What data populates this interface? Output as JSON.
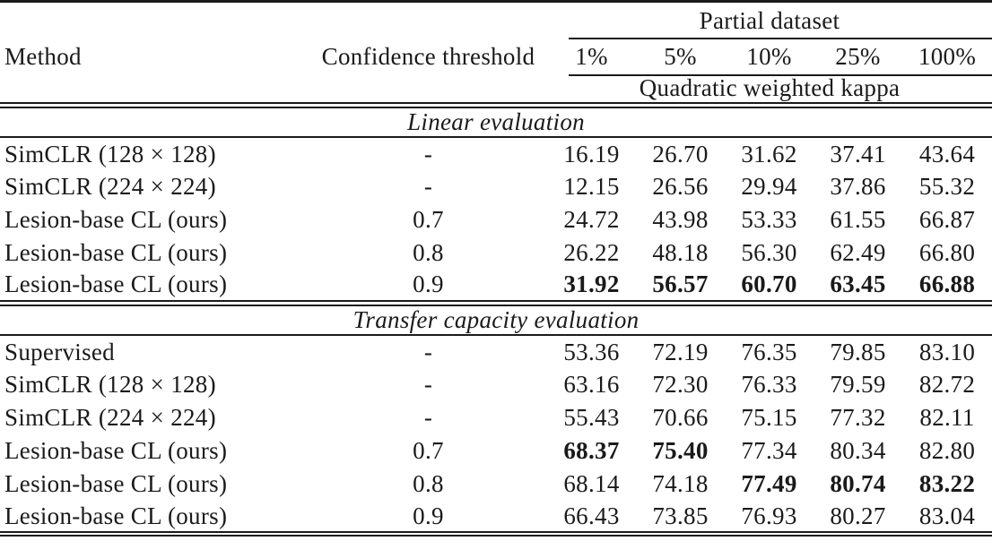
{
  "colors": {
    "text": "#1a1a1a",
    "background": "#ffffff"
  },
  "table": {
    "columns": {
      "method": "Method",
      "confidence": "Confidence threshold",
      "group": "Partial dataset",
      "percents": [
        "1%",
        "5%",
        "10%",
        "25%",
        "100%"
      ],
      "metric": "Quadratic weighted kappa"
    },
    "sections": [
      {
        "title": "Linear evaluation",
        "rows": [
          {
            "method": "SimCLR (128 × 128)",
            "confidence": "-",
            "values": [
              "16.19",
              "26.70",
              "31.62",
              "37.41",
              "43.64"
            ],
            "bold": [
              false,
              false,
              false,
              false,
              false
            ]
          },
          {
            "method": "SimCLR (224 × 224)",
            "confidence": "-",
            "values": [
              "12.15",
              "26.56",
              "29.94",
              "37.86",
              "55.32"
            ],
            "bold": [
              false,
              false,
              false,
              false,
              false
            ]
          },
          {
            "method": "Lesion-base CL (ours)",
            "confidence": "0.7",
            "values": [
              "24.72",
              "43.98",
              "53.33",
              "61.55",
              "66.87"
            ],
            "bold": [
              false,
              false,
              false,
              false,
              false
            ]
          },
          {
            "method": "Lesion-base CL (ours)",
            "confidence": "0.8",
            "values": [
              "26.22",
              "48.18",
              "56.30",
              "62.49",
              "66.80"
            ],
            "bold": [
              false,
              false,
              false,
              false,
              false
            ]
          },
          {
            "method": "Lesion-base CL (ours)",
            "confidence": "0.9",
            "values": [
              "31.92",
              "56.57",
              "60.70",
              "63.45",
              "66.88"
            ],
            "bold": [
              true,
              true,
              true,
              true,
              true
            ]
          }
        ]
      },
      {
        "title": "Transfer capacity evaluation",
        "rows": [
          {
            "method": "Supervised",
            "confidence": "-",
            "values": [
              "53.36",
              "72.19",
              "76.35",
              "79.85",
              "83.10"
            ],
            "bold": [
              false,
              false,
              false,
              false,
              false
            ]
          },
          {
            "method": "SimCLR (128 × 128)",
            "confidence": "-",
            "values": [
              "63.16",
              "72.30",
              "76.33",
              "79.59",
              "82.72"
            ],
            "bold": [
              false,
              false,
              false,
              false,
              false
            ]
          },
          {
            "method": "SimCLR (224 × 224)",
            "confidence": "-",
            "values": [
              "55.43",
              "70.66",
              "75.15",
              "77.32",
              "82.11"
            ],
            "bold": [
              false,
              false,
              false,
              false,
              false
            ]
          },
          {
            "method": "Lesion-base CL (ours)",
            "confidence": "0.7",
            "values": [
              "68.37",
              "75.40",
              "77.34",
              "80.34",
              "82.80"
            ],
            "bold": [
              true,
              true,
              false,
              false,
              false
            ]
          },
          {
            "method": "Lesion-base CL (ours)",
            "confidence": "0.8",
            "values": [
              "68.14",
              "74.18",
              "77.49",
              "80.74",
              "83.22"
            ],
            "bold": [
              false,
              false,
              true,
              true,
              true
            ]
          },
          {
            "method": "Lesion-base CL (ours)",
            "confidence": "0.9",
            "values": [
              "66.43",
              "73.85",
              "76.93",
              "80.27",
              "83.04"
            ],
            "bold": [
              false,
              false,
              false,
              false,
              false
            ]
          }
        ]
      }
    ]
  }
}
